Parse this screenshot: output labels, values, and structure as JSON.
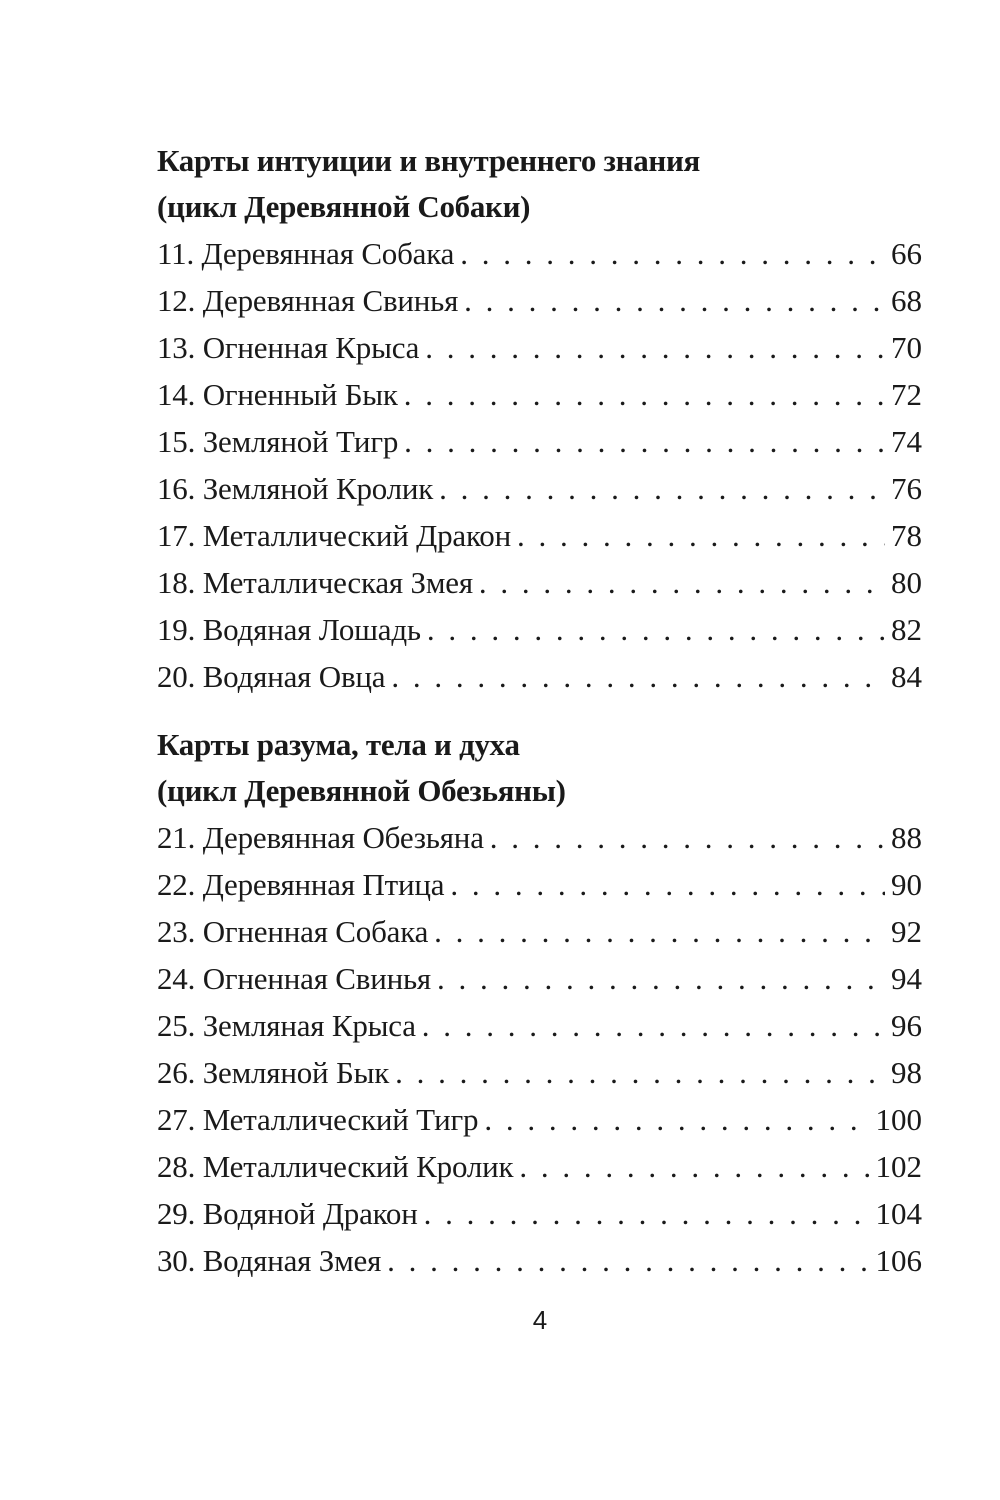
{
  "sections": [
    {
      "title_line1": "Карты интуиции и внутреннего знания",
      "title_line2": "(цикл Деревянной Собаки)",
      "entries": [
        {
          "label": "11. Деревянная Собака",
          "page": "66"
        },
        {
          "label": "12. Деревянная Свинья",
          "page": "68"
        },
        {
          "label": "13. Огненная Крыса",
          "page": "70"
        },
        {
          "label": "14. Огненный Бык",
          "page": "72"
        },
        {
          "label": "15. Земляной Тигр",
          "page": "74"
        },
        {
          "label": "16. Земляной Кролик",
          "page": "76"
        },
        {
          "label": "17. Металлический Дракон",
          "page": "78"
        },
        {
          "label": "18. Металлическая Змея",
          "page": "80"
        },
        {
          "label": "19. Водяная Лошадь",
          "page": "82"
        },
        {
          "label": "20. Водяная Овца",
          "page": "84"
        }
      ]
    },
    {
      "title_line1": "Карты разума, тела и духа",
      "title_line2": "(цикл Деревянной Обезьяны)",
      "entries": [
        {
          "label": "21. Деревянная Обезьяна",
          "page": "88"
        },
        {
          "label": "22. Деревянная Птица",
          "page": "90"
        },
        {
          "label": "23. Огненная Собака",
          "page": "92"
        },
        {
          "label": "24. Огненная Свинья",
          "page": "94"
        },
        {
          "label": "25. Земляная Крыса",
          "page": "96"
        },
        {
          "label": "26. Земляной Бык",
          "page": "98"
        },
        {
          "label": "27. Металлический Тигр",
          "page": "100"
        },
        {
          "label": "28. Металлический Кролик",
          "page": "102"
        },
        {
          "label": "29. Водяной Дракон",
          "page": "104"
        },
        {
          "label": "30. Водяная Змея",
          "page": "106"
        }
      ]
    }
  ],
  "page_number": "4"
}
